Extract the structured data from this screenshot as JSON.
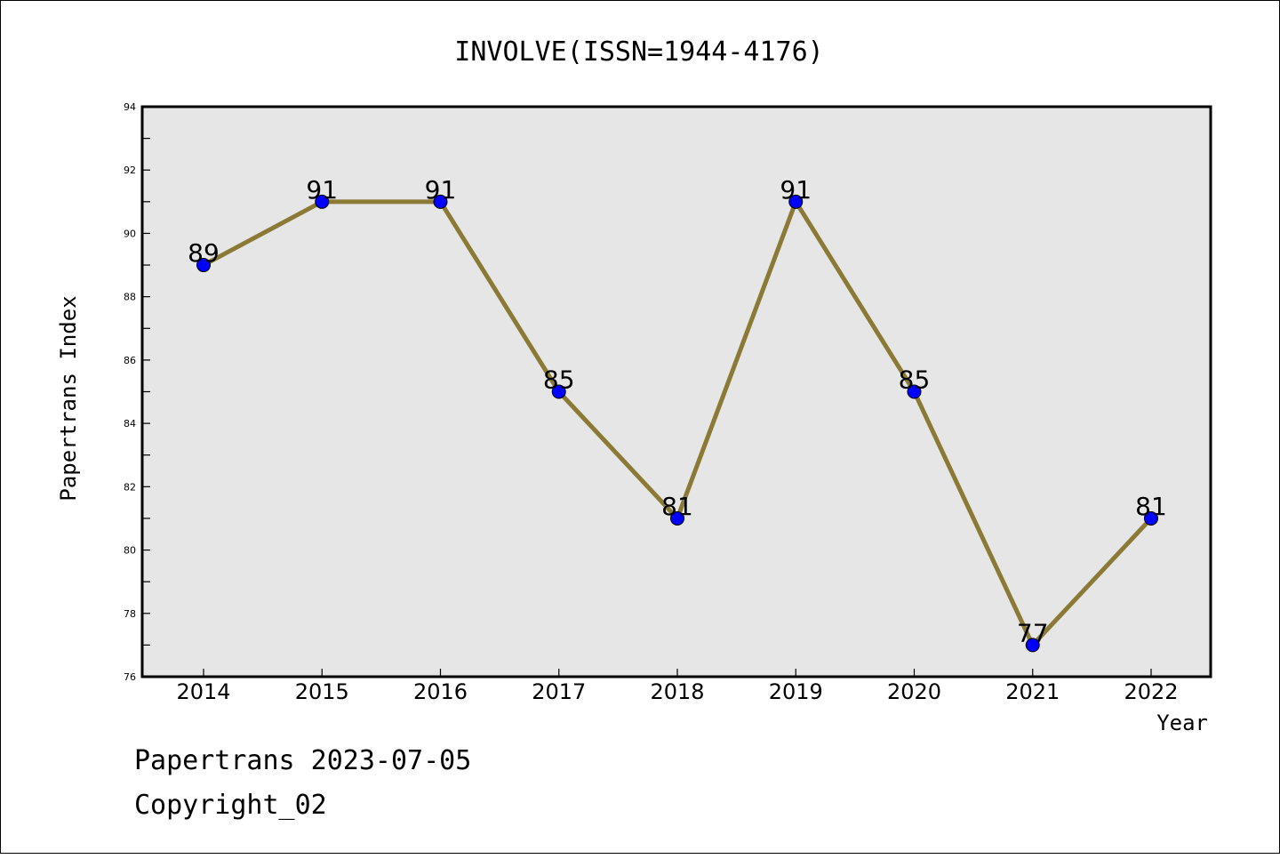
{
  "chart_data": {
    "type": "line",
    "title": "INVOLVE(ISSN=1944-4176)",
    "xlabel": "Year",
    "ylabel": "Papertrans Index",
    "categories": [
      "2014",
      "2015",
      "2016",
      "2017",
      "2018",
      "2019",
      "2020",
      "2021",
      "2022"
    ],
    "series": [
      {
        "values": [
          89,
          91,
          91,
          85,
          81,
          91,
          85,
          77,
          81
        ]
      }
    ],
    "ylim": [
      76,
      94
    ],
    "yticks": [
      76,
      78,
      80,
      82,
      84,
      86,
      88,
      90,
      92,
      94
    ],
    "grid": false,
    "plot_background": "#e6e6e6",
    "line_color": "#8b7a35",
    "marker_color": "#0000ff"
  },
  "footer": {
    "line1": "Papertrans 2023-07-05",
    "line2": "Copyright_02"
  }
}
